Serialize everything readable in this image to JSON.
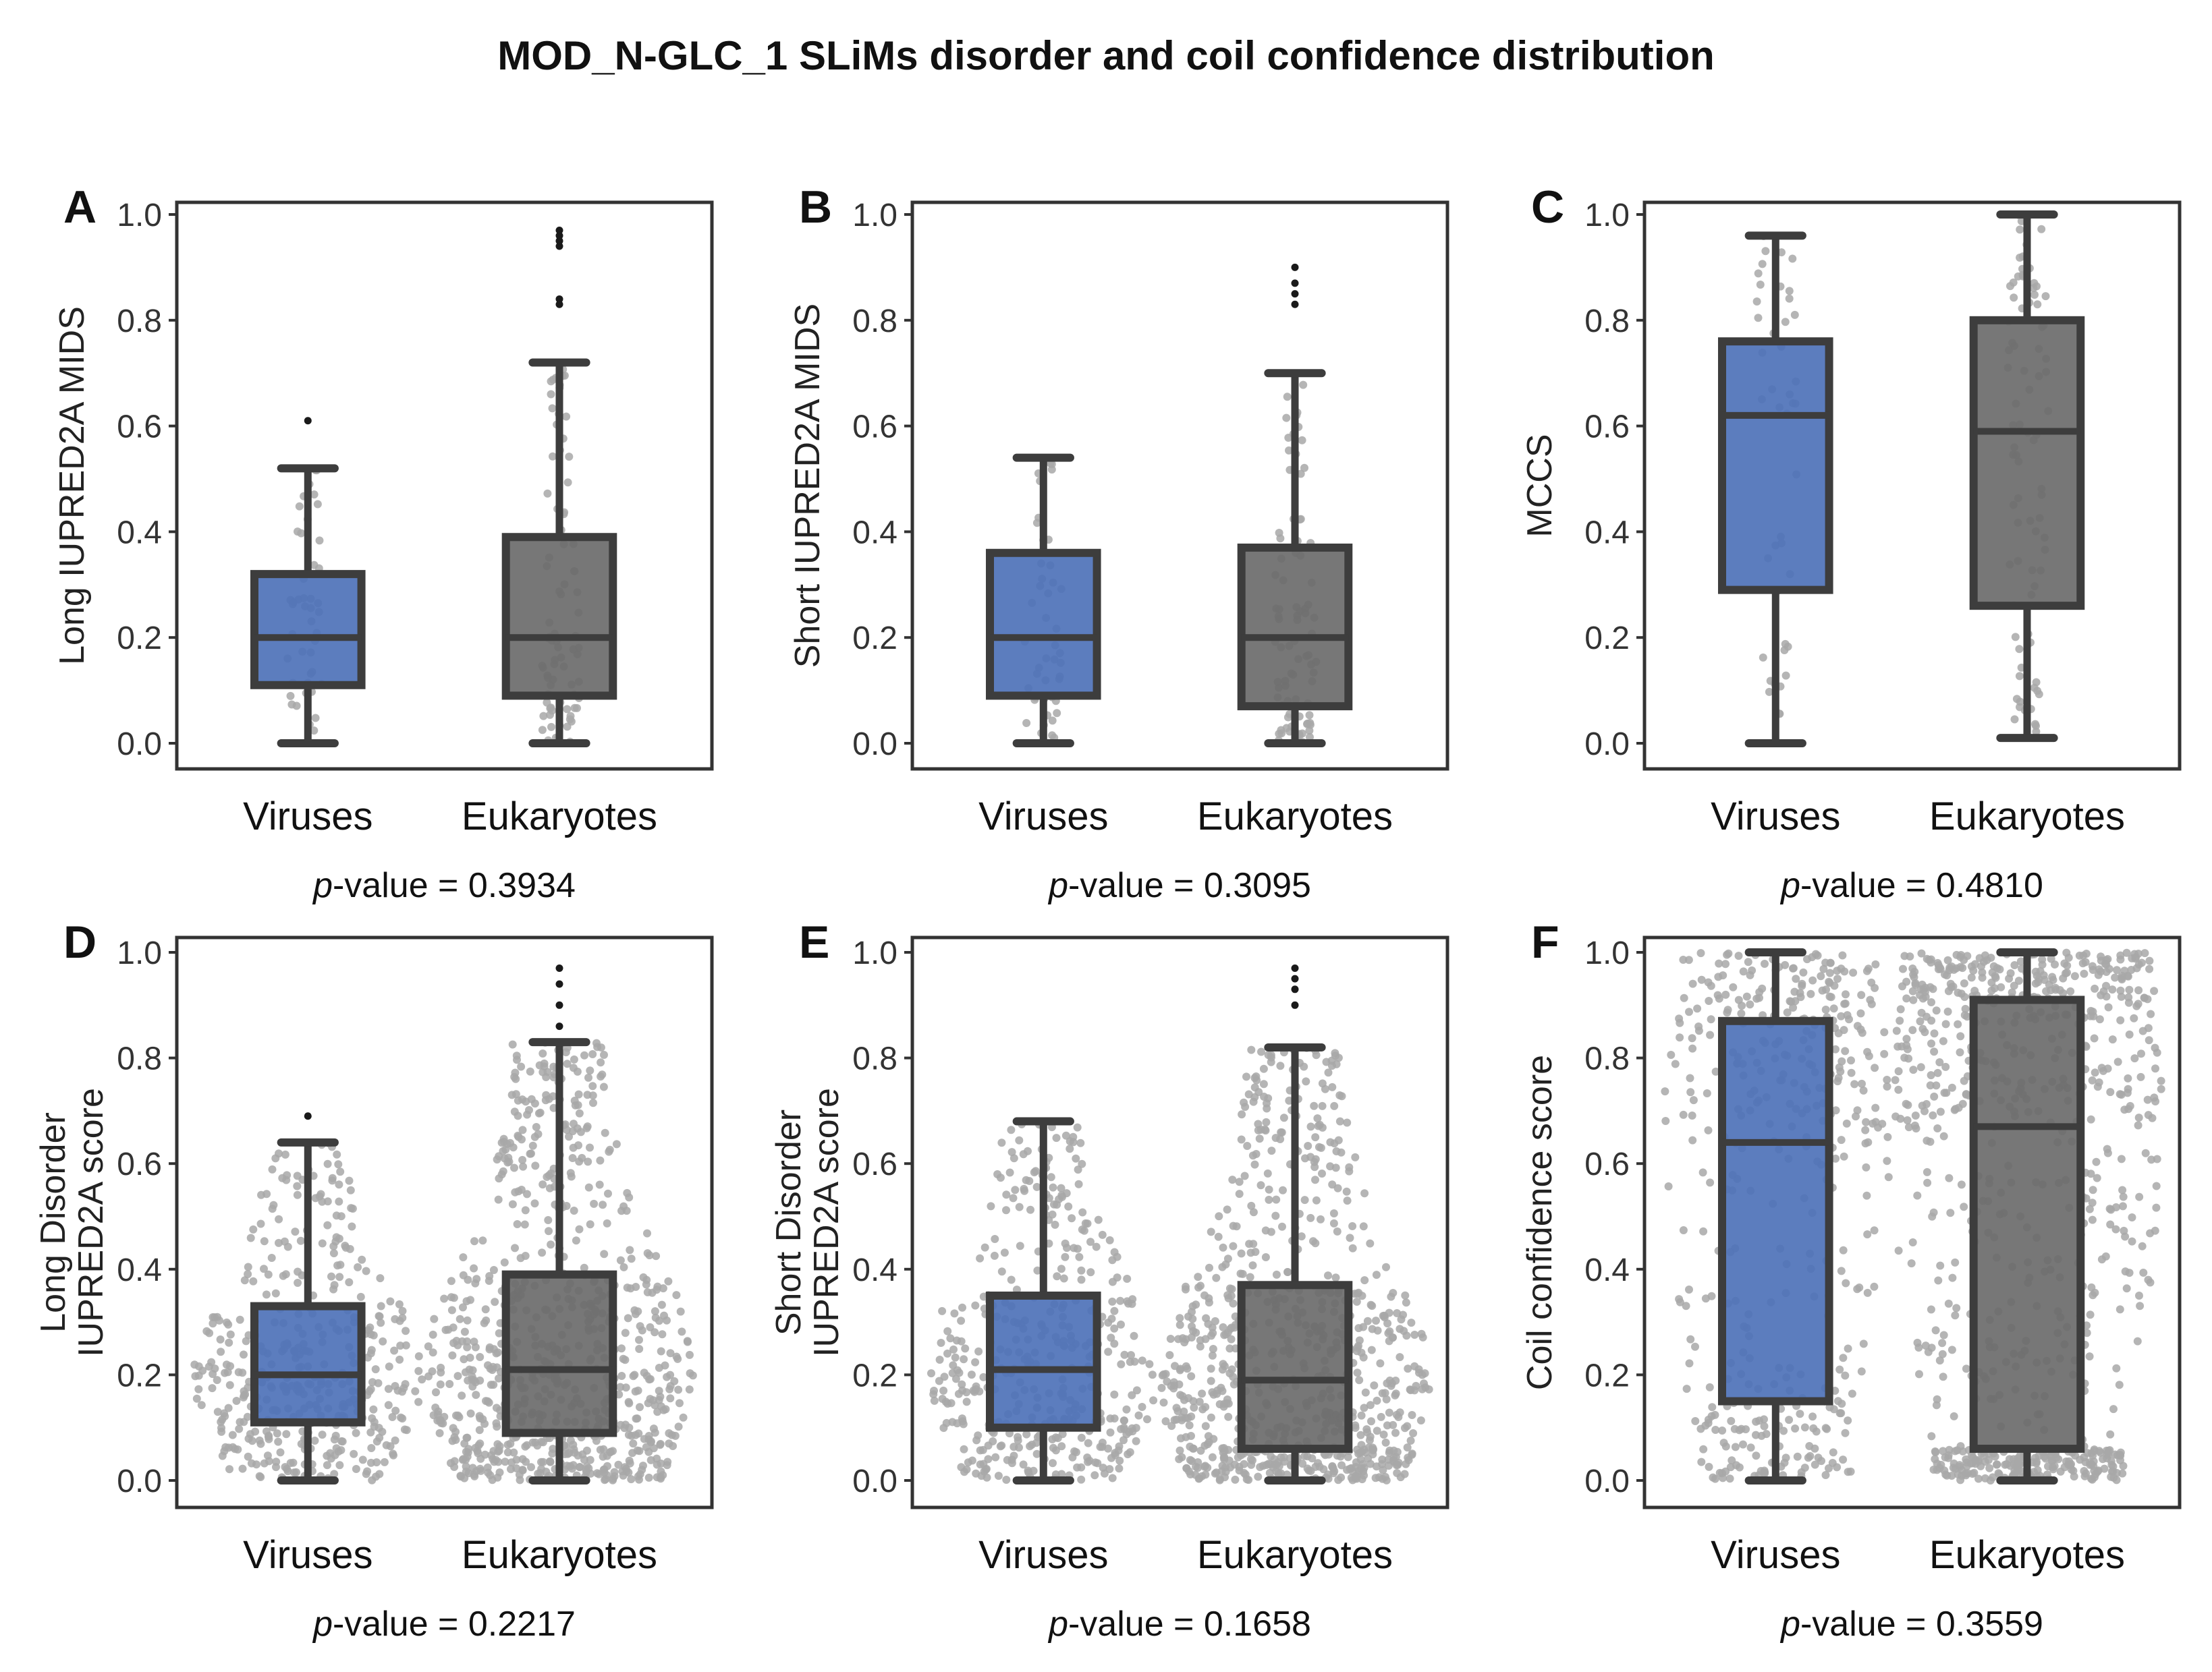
{
  "figure": {
    "title": "MOD_N-GLC_1 SLiMs disorder and coil confidence distribution"
  },
  "colors": {
    "viruses_box": "#4e72b8",
    "eukaryotes_box": "#6b6b6b",
    "box_edge": "#3d3d3d",
    "swarm_point": "#a8a8a8",
    "outlier_point": "#1a1a1a"
  },
  "chart_data": [
    {
      "panel": "A",
      "type": "box",
      "ylabel": "Long IUPRED2A MIDS",
      "ylabel_lines": [
        "Long IUPRED2A MIDS"
      ],
      "ylim": [
        0.0,
        1.0
      ],
      "yticks": [
        "0.0",
        "0.2",
        "0.4",
        "0.6",
        "0.8",
        "1.0"
      ],
      "categories": [
        "Viruses",
        "Eukaryotes"
      ],
      "p_label": "p",
      "p_text": "-value = 0.3934",
      "series": [
        {
          "name": "Viruses",
          "min": 0.0,
          "q1": 0.11,
          "median": 0.2,
          "q3": 0.32,
          "max": 0.52,
          "outliers": [
            0.61
          ],
          "n_points": 45
        },
        {
          "name": "Eukaryotes",
          "min": 0.0,
          "q1": 0.09,
          "median": 0.2,
          "q3": 0.39,
          "max": 0.72,
          "outliers": [
            0.83,
            0.84,
            0.94,
            0.95,
            0.96,
            0.97
          ],
          "n_points": 85
        }
      ]
    },
    {
      "panel": "B",
      "type": "box",
      "ylabel": "Short IUPRED2A MIDS",
      "ylabel_lines": [
        "Short IUPRED2A MIDS"
      ],
      "ylim": [
        0.0,
        1.0
      ],
      "yticks": [
        "0.0",
        "0.2",
        "0.4",
        "0.6",
        "0.8",
        "1.0"
      ],
      "categories": [
        "Viruses",
        "Eukaryotes"
      ],
      "p_label": "p",
      "p_text": "-value = 0.3095",
      "series": [
        {
          "name": "Viruses",
          "min": 0.0,
          "q1": 0.09,
          "median": 0.2,
          "q3": 0.36,
          "max": 0.54,
          "outliers": [],
          "n_points": 45
        },
        {
          "name": "Eukaryotes",
          "min": 0.0,
          "q1": 0.07,
          "median": 0.2,
          "q3": 0.37,
          "max": 0.7,
          "outliers": [
            0.83,
            0.85,
            0.87,
            0.9
          ],
          "n_points": 85
        }
      ]
    },
    {
      "panel": "C",
      "type": "box",
      "ylabel": "MCCS",
      "ylabel_lines": [
        "MCCS"
      ],
      "ylim": [
        0.0,
        1.0
      ],
      "yticks": [
        "0.0",
        "0.2",
        "0.4",
        "0.6",
        "0.8",
        "1.0"
      ],
      "categories": [
        "Viruses",
        "Eukaryotes"
      ],
      "p_label": "p",
      "p_text": "-value = 0.4810",
      "series": [
        {
          "name": "Viruses",
          "min": 0.0,
          "q1": 0.29,
          "median": 0.62,
          "q3": 0.76,
          "max": 0.96,
          "outliers": [],
          "n_points": 45
        },
        {
          "name": "Eukaryotes",
          "min": 0.01,
          "q1": 0.26,
          "median": 0.59,
          "q3": 0.8,
          "max": 1.0,
          "outliers": [],
          "n_points": 85
        }
      ]
    },
    {
      "panel": "D",
      "type": "box",
      "ylabel": "Long Disorder IUPRED2A score",
      "ylabel_lines": [
        "Long Disorder",
        "IUPRED2A score"
      ],
      "ylim": [
        0.0,
        1.0
      ],
      "yticks": [
        "0.0",
        "0.2",
        "0.4",
        "0.6",
        "0.8",
        "1.0"
      ],
      "categories": [
        "Viruses",
        "Eukaryotes"
      ],
      "p_label": "p",
      "p_text": "-value = 0.2217",
      "series": [
        {
          "name": "Viruses",
          "min": 0.0,
          "q1": 0.11,
          "median": 0.2,
          "q3": 0.33,
          "max": 0.64,
          "outliers": [
            0.69
          ],
          "n_points": 420
        },
        {
          "name": "Eukaryotes",
          "min": 0.0,
          "q1": 0.09,
          "median": 0.21,
          "q3": 0.39,
          "max": 0.83,
          "outliers": [
            0.86,
            0.9,
            0.94,
            0.97
          ],
          "n_points": 780
        }
      ]
    },
    {
      "panel": "E",
      "type": "box",
      "ylabel": "Short Disorder IUPRED2A score",
      "ylabel_lines": [
        "Short Disorder",
        "IUPRED2A score"
      ],
      "ylim": [
        0.0,
        1.0
      ],
      "yticks": [
        "0.0",
        "0.2",
        "0.4",
        "0.6",
        "0.8",
        "1.0"
      ],
      "categories": [
        "Viruses",
        "Eukaryotes"
      ],
      "p_label": "p",
      "p_text": "-value = 0.1658",
      "series": [
        {
          "name": "Viruses",
          "min": 0.0,
          "q1": 0.1,
          "median": 0.21,
          "q3": 0.35,
          "max": 0.68,
          "outliers": [],
          "n_points": 420
        },
        {
          "name": "Eukaryotes",
          "min": 0.0,
          "q1": 0.06,
          "median": 0.19,
          "q3": 0.37,
          "max": 0.82,
          "outliers": [
            0.9,
            0.93,
            0.95,
            0.97
          ],
          "n_points": 780
        }
      ]
    },
    {
      "panel": "F",
      "type": "box",
      "ylabel": "Coil confidence score",
      "ylabel_lines": [
        "Coil confidence score"
      ],
      "ylim": [
        0.0,
        1.0
      ],
      "yticks": [
        "0.0",
        "0.2",
        "0.4",
        "0.6",
        "0.8",
        "1.0"
      ],
      "categories": [
        "Viruses",
        "Eukaryotes"
      ],
      "p_label": "p",
      "p_text": "-value = 0.3559",
      "series": [
        {
          "name": "Viruses",
          "min": 0.0,
          "q1": 0.15,
          "median": 0.64,
          "q3": 0.87,
          "max": 1.0,
          "outliers": [],
          "n_points": 420
        },
        {
          "name": "Eukaryotes",
          "min": 0.0,
          "q1": 0.06,
          "median": 0.67,
          "q3": 0.91,
          "max": 1.0,
          "outliers": [],
          "n_points": 780
        }
      ]
    }
  ]
}
